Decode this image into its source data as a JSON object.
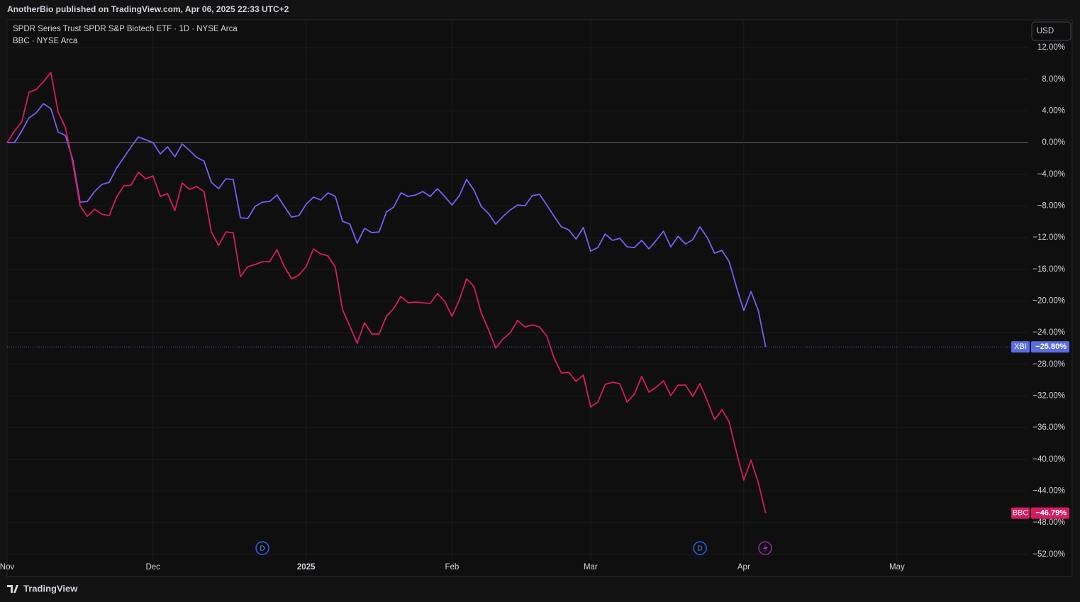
{
  "header": "AnotherBio published on TradingView.com, Apr 06, 2025 22:33 UTC+2",
  "currency": "USD",
  "footer": "TradingView",
  "chart_data": {
    "type": "line",
    "legend": [
      "SPDR Series Trust SPDR S&P Biotech ETF · 1D · NYSE Arca",
      "BBC · NYSE Arca"
    ],
    "xlim": [
      0,
      140
    ],
    "xticks": [
      {
        "value": 0,
        "label": "Nov"
      },
      {
        "value": 20,
        "label": "Dec"
      },
      {
        "value": 41,
        "label": "2025"
      },
      {
        "value": 61,
        "label": "Feb"
      },
      {
        "value": 80,
        "label": "Mar"
      },
      {
        "value": 101,
        "label": "Apr"
      },
      {
        "value": 122,
        "label": "May"
      }
    ],
    "ylim": [
      -53,
      15.5
    ],
    "yticks": [
      {
        "value": 12,
        "label": "12.00%"
      },
      {
        "value": 8,
        "label": "8.00%"
      },
      {
        "value": 4,
        "label": "4.00%"
      },
      {
        "value": 0,
        "label": "0.00%"
      },
      {
        "value": -4,
        "label": "−4.00%"
      },
      {
        "value": -8,
        "label": "−8.00%"
      },
      {
        "value": -12,
        "label": "−12.00%"
      },
      {
        "value": -16,
        "label": "−16.00%"
      },
      {
        "value": -20,
        "label": "−20.00%"
      },
      {
        "value": -24,
        "label": "−24.00%"
      },
      {
        "value": -28,
        "label": "−28.00%"
      },
      {
        "value": -32,
        "label": "−32.00%"
      },
      {
        "value": -36,
        "label": "−36.00%"
      },
      {
        "value": -40,
        "label": "−40.00%"
      },
      {
        "value": -44,
        "label": "−44.00%"
      },
      {
        "value": -48,
        "label": "−48.00%"
      },
      {
        "value": -52,
        "label": "−52.00%"
      }
    ],
    "grid": true,
    "events": [
      {
        "label": "D",
        "x": 35
      },
      {
        "label": "D",
        "x": 95
      }
    ],
    "series": [
      {
        "name": "XBI",
        "color": "#7b5cf5",
        "tag_color": "#5b6ee1",
        "last_label": "−25.80%",
        "values": [
          0,
          0,
          1.43,
          3.13,
          3.76,
          4.92,
          4.3,
          1.34,
          0.9,
          -2.15,
          -7.52,
          -7.43,
          -6.18,
          -5.28,
          -5.01,
          -3.22,
          -1.88,
          -0.54,
          0.72,
          0.36,
          0,
          -1.43,
          -0.54,
          -1.79,
          -0.18,
          -0.98,
          -1.88,
          -2.33,
          -5.01,
          -5.82,
          -4.57,
          -4.66,
          -9.49,
          -9.58,
          -8.06,
          -7.52,
          -7.43,
          -6.62,
          -8.06,
          -9.4,
          -9.22,
          -7.79,
          -6.89,
          -7.25,
          -6.36,
          -6.8,
          -9.94,
          -10.3,
          -12.71,
          -10.83,
          -11.37,
          -11.28,
          -8.77,
          -8.15,
          -6.36,
          -6.8,
          -6.62,
          -6.18,
          -6.8,
          -5.82,
          -6.8,
          -7.88,
          -6.71,
          -4.66,
          -6.0,
          -8.06,
          -8.95,
          -10.3,
          -9.31,
          -8.5,
          -7.88,
          -7.97,
          -6.71,
          -6.54,
          -7.88,
          -9.31,
          -10.65,
          -11.01,
          -12.18,
          -10.74,
          -13.7,
          -13.25,
          -11.55,
          -12.35,
          -12.09,
          -13.16,
          -13.25,
          -12.35,
          -13.43,
          -12.35,
          -11.19,
          -13.16,
          -11.82,
          -12.8,
          -12.26,
          -10.65,
          -12.0,
          -13.97,
          -13.61,
          -15.04,
          -18.26,
          -21.22,
          -18.8,
          -21.22,
          -25.8
        ]
      },
      {
        "name": "BBC",
        "color": "#d81b60",
        "tag_color": "#d81b60",
        "last_label": "−46.79%",
        "values": [
          0,
          1.43,
          2.6,
          6.36,
          6.71,
          7.7,
          8.86,
          3.85,
          1.88,
          -2.6,
          -7.97,
          -9.31,
          -8.42,
          -9.04,
          -9.22,
          -6.89,
          -5.46,
          -5.37,
          -3.76,
          -4.57,
          -4.21,
          -6.8,
          -6.45,
          -8.59,
          -5.1,
          -5.91,
          -5.55,
          -6.18,
          -11.28,
          -12.98,
          -11.28,
          -11.37,
          -16.92,
          -15.67,
          -15.4,
          -15.04,
          -15.04,
          -13.52,
          -15.67,
          -17.19,
          -16.74,
          -15.67,
          -13.43,
          -14.06,
          -14.32,
          -15.76,
          -21.13,
          -23.19,
          -25.34,
          -22.74,
          -24.17,
          -24.17,
          -21.93,
          -20.95,
          -19.43,
          -20.23,
          -20.14,
          -20.23,
          -20.32,
          -19.07,
          -20.05,
          -21.93,
          -19.87,
          -17.19,
          -18.17,
          -21.49,
          -23.63,
          -25.96,
          -24.8,
          -23.99,
          -22.47,
          -23.28,
          -23.01,
          -23.28,
          -24.44,
          -27.22,
          -29.1,
          -29.01,
          -30.17,
          -29.36,
          -33.39,
          -32.77,
          -30.53,
          -30.26,
          -30.44,
          -32.77,
          -31.78,
          -29.54,
          -31.51,
          -30.89,
          -30.08,
          -31.96,
          -30.62,
          -30.62,
          -32.05,
          -30.44,
          -32.59,
          -35.0,
          -33.75,
          -35.27,
          -39.12,
          -42.61,
          -40.11,
          -42.97,
          -46.79
        ]
      }
    ]
  }
}
